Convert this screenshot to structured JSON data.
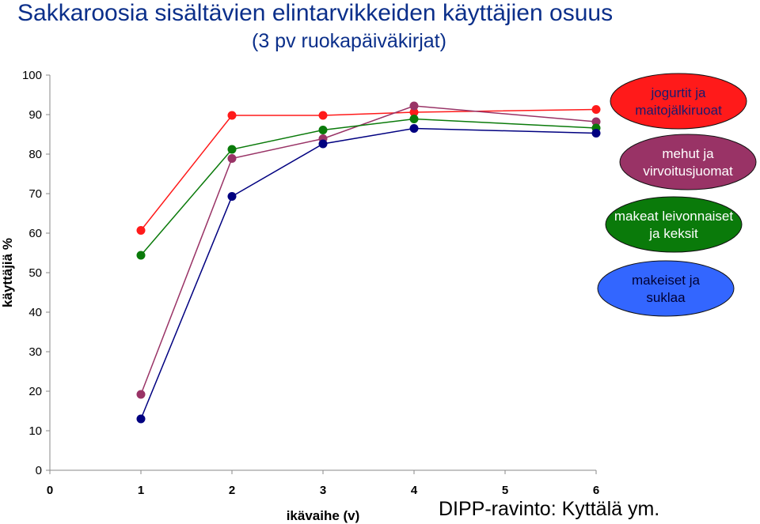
{
  "title": "Sakkaroosia sisältävien elintarvikkeiden käyttäjien osuus",
  "subtitle": "(3 pv ruokapäiväkirjat)",
  "source": "DIPP-ravinto: Kyttälä ym.",
  "chart_data": {
    "type": "line",
    "xlabel": "ikävaihe (v)",
    "ylabel": "käyttäjiä %",
    "x_ticks": [
      "0",
      "1",
      "2",
      "3",
      "4",
      "5",
      "6"
    ],
    "y_ticks": [
      "0",
      "10",
      "20",
      "30",
      "40",
      "50",
      "60",
      "70",
      "80",
      "90",
      "100"
    ],
    "xlim": [
      0,
      6
    ],
    "ylim": [
      0,
      100
    ],
    "grid": false,
    "legend_position": "right",
    "series": [
      {
        "name": "jogurtit ja maitojälkiruoat",
        "name_lines": [
          "jogurtit ja",
          "maitojälkiruoat"
        ],
        "color": "#ff1a1a",
        "text_color": "#1a1a6e",
        "x": [
          1,
          2,
          3,
          4,
          6
        ],
        "y": [
          60.7,
          89.8,
          89.8,
          90.6,
          91.3
        ]
      },
      {
        "name": "mehut ja virvoitusjuomat",
        "name_lines": [
          "mehut ja",
          "virvoitusjuomat"
        ],
        "color": "#993366",
        "text_color": "#ffffff",
        "x": [
          1,
          2,
          3,
          4,
          6
        ],
        "y": [
          19.2,
          78.9,
          83.9,
          92.2,
          88.2
        ]
      },
      {
        "name": "makeat leivonnaiset ja keksit",
        "name_lines": [
          "makeat leivonnaiset",
          "ja keksit"
        ],
        "color": "#0a7a0a",
        "text_color": "#ffffff",
        "x": [
          1,
          2,
          3,
          4,
          6
        ],
        "y": [
          54.4,
          81.2,
          86.1,
          88.9,
          86.6
        ]
      },
      {
        "name": "makeiset ja suklaa",
        "name_lines": [
          "makeiset ja",
          "suklaa"
        ],
        "color": "#000080",
        "ellipse_color": "#3366ff",
        "text_color": "#000033",
        "x": [
          1,
          2,
          3,
          4,
          6
        ],
        "y": [
          13.0,
          69.3,
          82.6,
          86.5,
          85.3
        ]
      }
    ]
  }
}
